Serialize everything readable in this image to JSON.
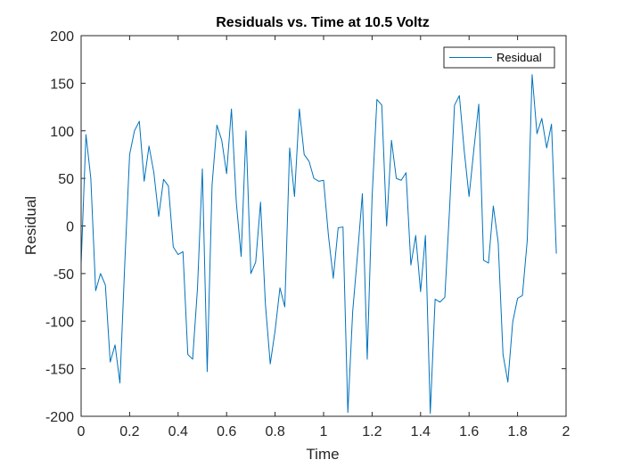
{
  "chart_data": {
    "type": "line",
    "title": "Residuals vs. Time at 10.5 Voltz",
    "xlabel": "Time",
    "ylabel": "Residual",
    "xlim": [
      0,
      2
    ],
    "ylim": [
      -200,
      200
    ],
    "xticks": [
      0,
      0.2,
      0.4,
      0.6,
      0.8,
      1,
      1.2,
      1.4,
      1.6,
      1.8,
      2
    ],
    "xtick_labels": [
      "0",
      "0.2",
      "0.4",
      "0.6",
      "0.8",
      "1",
      "1.2",
      "1.4",
      "1.6",
      "1.8",
      "2"
    ],
    "yticks": [
      -200,
      -150,
      -100,
      -50,
      0,
      50,
      100,
      150,
      200
    ],
    "ytick_labels": [
      "-200",
      "-150",
      "-100",
      "-50",
      "0",
      "50",
      "100",
      "150",
      "200"
    ],
    "grid": false,
    "legend_location": "top-right",
    "series": [
      {
        "name": "Residual",
        "color": "#0072bd",
        "x": [
          0,
          0.02,
          0.04,
          0.06,
          0.08,
          0.1,
          0.12,
          0.14,
          0.16,
          0.18,
          0.2,
          0.22,
          0.24,
          0.26,
          0.28,
          0.3,
          0.32,
          0.34,
          0.36,
          0.38,
          0.4,
          0.42,
          0.44,
          0.46,
          0.48,
          0.5,
          0.52,
          0.54,
          0.56,
          0.58,
          0.6,
          0.62,
          0.64,
          0.66,
          0.68,
          0.7,
          0.72,
          0.74,
          0.76,
          0.78,
          0.8,
          0.82,
          0.84,
          0.86,
          0.88,
          0.9,
          0.92,
          0.94,
          0.96,
          0.98,
          1.0,
          1.02,
          1.04,
          1.06,
          1.08,
          1.1,
          1.12,
          1.14,
          1.16,
          1.18,
          1.2,
          1.22,
          1.24,
          1.26,
          1.28,
          1.3,
          1.32,
          1.34,
          1.36,
          1.38,
          1.4,
          1.42,
          1.44,
          1.46,
          1.48,
          1.5,
          1.52,
          1.54,
          1.56,
          1.58,
          1.6,
          1.62,
          1.64,
          1.66,
          1.68,
          1.7,
          1.72,
          1.74,
          1.76,
          1.78,
          1.8,
          1.82,
          1.84,
          1.86,
          1.88,
          1.9,
          1.92,
          1.94,
          1.96
        ],
        "y": [
          -40,
          96,
          50,
          -68,
          -50,
          -62,
          -143,
          -125,
          -165,
          -40,
          75,
          100,
          110,
          47,
          84,
          56,
          10,
          49,
          42,
          -22,
          -30,
          -27,
          -135,
          -140,
          -65,
          60,
          -153,
          43,
          106,
          90,
          55,
          123,
          25,
          -32,
          100,
          -50,
          -38,
          25,
          -82,
          -145,
          -110,
          -65,
          -85,
          82,
          31,
          123,
          75,
          68,
          50,
          47,
          48,
          -10,
          -55,
          -2,
          -1,
          -196,
          -90,
          -30,
          34,
          -140,
          30,
          133,
          127,
          0,
          90,
          50,
          48,
          56,
          -41,
          -10,
          -69,
          -10,
          -197,
          -77,
          -80,
          -75,
          20,
          127,
          137,
          79,
          31,
          81,
          128,
          -36,
          -39,
          21,
          -17,
          -135,
          -164,
          -101,
          -76,
          -73,
          -15,
          159,
          97,
          113,
          82,
          107,
          -29
        ]
      }
    ]
  }
}
